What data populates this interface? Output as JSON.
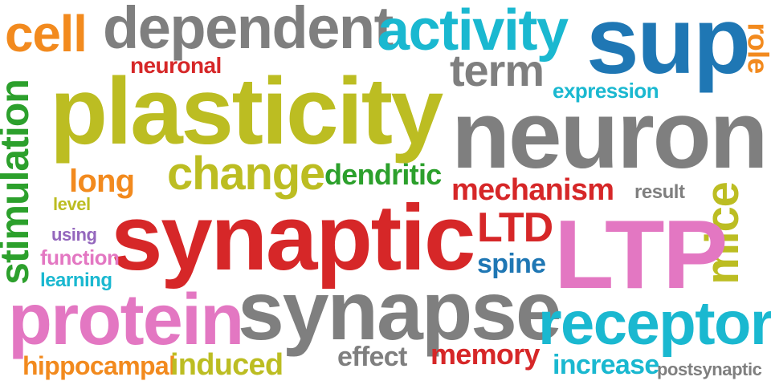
{
  "colors": {
    "orange": "#f28a1e",
    "gray": "#7f7f7f",
    "cyan": "#1ab8d0",
    "blue": "#1f77b4",
    "olive": "#bcbd22",
    "red": "#d62728",
    "green": "#2ca02c",
    "pink": "#e377c2",
    "purple": "#9467bd"
  },
  "words": {
    "cell": "cell",
    "dependent": "dependent",
    "activity": "activity",
    "sup": "sup",
    "role": "role",
    "neuronal": "neuronal",
    "term": "term",
    "stimulation": "stimulation",
    "plasticity": "plasticity",
    "expression": "expression",
    "neuron": "neuron",
    "long": "long",
    "change": "change",
    "dendritic": "dendritic",
    "mechanism": "mechanism",
    "result": "result",
    "level": "level",
    "mice": "mice",
    "using": "using",
    "synaptic": "synaptic",
    "ltd": "LTD",
    "ltp": "LTP",
    "function": "function",
    "spine": "spine",
    "learning": "learning",
    "protein": "protein",
    "synapse": "synapse",
    "receptor": "receptor",
    "effect": "effect",
    "memory": "memory",
    "hippocampal": "hippocampal",
    "induced": "induced",
    "increase": "increase",
    "postsynaptic": "postsynaptic"
  }
}
